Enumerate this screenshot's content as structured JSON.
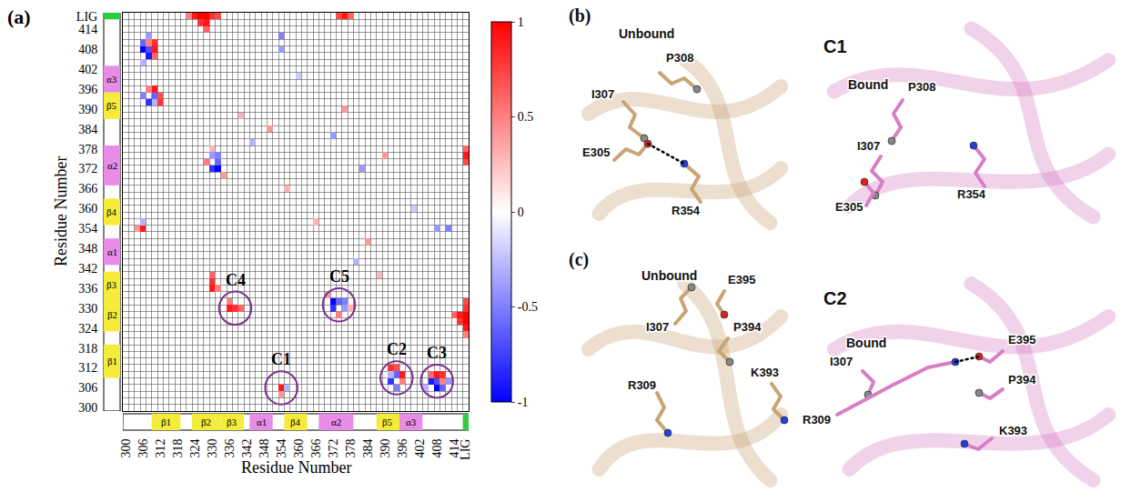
{
  "chart_data": {
    "type": "heatmap",
    "panel_label": "(a)",
    "x_label": "Residue Number",
    "y_label": "Residue Number",
    "categories": [
      "300",
      null,
      null,
      "306",
      null,
      null,
      "312",
      null,
      null,
      "318",
      null,
      null,
      "324",
      null,
      null,
      "330",
      null,
      null,
      "336",
      null,
      null,
      "342",
      null,
      null,
      "348",
      null,
      null,
      "354",
      null,
      null,
      "360",
      null,
      null,
      "366",
      null,
      null,
      "372",
      null,
      null,
      "378",
      null,
      null,
      "384",
      null,
      null,
      "390",
      null,
      null,
      "396",
      null,
      null,
      "402",
      null,
      null,
      "408",
      null,
      null,
      "414",
      null,
      "LIG"
    ],
    "grid": true,
    "colors": [
      "#0000ff",
      "#ffffff",
      "#ff0000"
    ],
    "colorbar_range": [
      -1,
      1
    ],
    "colorbar_ticks": [
      -1,
      -0.5,
      0,
      0.5,
      1
    ],
    "cells": [
      [
        27,
        3,
        0.9
      ],
      [
        27,
        2,
        0.4
      ],
      [
        28,
        3,
        -0.3
      ],
      [
        46,
        6,
        0.8
      ],
      [
        47,
        6,
        0.7
      ],
      [
        47,
        5,
        -0.6
      ],
      [
        46,
        4,
        -0.8
      ],
      [
        48,
        4,
        0.5
      ],
      [
        47,
        3,
        -0.5
      ],
      [
        48,
        5,
        0.9
      ],
      [
        46,
        5,
        -0.3
      ],
      [
        53,
        4,
        -0.9
      ],
      [
        54,
        4,
        -0.7
      ],
      [
        54,
        3,
        -1
      ],
      [
        55,
        3,
        -0.6
      ],
      [
        54,
        5,
        0.9
      ],
      [
        55,
        5,
        0.8
      ],
      [
        53,
        5,
        0.6
      ],
      [
        56,
        4,
        -0.4
      ],
      [
        52,
        3,
        -0.3
      ],
      [
        55,
        4,
        0.5
      ],
      [
        18,
        15,
        0.9
      ],
      [
        19,
        15,
        0.8
      ],
      [
        20,
        15,
        0.6
      ],
      [
        18,
        16,
        0.5
      ],
      [
        36,
        16,
        -1
      ],
      [
        36,
        15,
        -0.8
      ],
      [
        37,
        16,
        -0.6
      ],
      [
        38,
        15,
        -0.4
      ],
      [
        37,
        14,
        0.5
      ],
      [
        38,
        16,
        -0.5
      ],
      [
        39,
        15,
        0.3
      ],
      [
        35,
        17,
        0.4
      ],
      [
        59,
        11,
        0.5
      ],
      [
        59,
        12,
        0.9
      ],
      [
        59,
        13,
        1
      ],
      [
        59,
        14,
        1
      ],
      [
        59,
        15,
        0.8
      ],
      [
        59,
        16,
        0.7
      ],
      [
        58,
        13,
        0.8
      ],
      [
        58,
        14,
        0.9
      ],
      [
        57,
        14,
        0.6
      ],
      [
        59,
        37,
        0.7
      ],
      [
        59,
        38,
        0.9
      ],
      [
        59,
        39,
        0.6
      ],
      [
        44,
        20,
        0.3
      ],
      [
        40,
        22,
        -0.3
      ],
      [
        42,
        25,
        0.4
      ],
      [
        50,
        30,
        -0.2
      ],
      [
        33,
        28,
        0.3
      ],
      [
        45,
        38,
        0.4
      ],
      [
        41,
        36,
        -0.4
      ],
      [
        56,
        27,
        -0.5
      ],
      [
        54,
        27,
        -0.4
      ],
      [
        3,
        27,
        0.9
      ],
      [
        2,
        27,
        0.4
      ],
      [
        3,
        28,
        -0.3
      ],
      [
        6,
        46,
        0.8
      ],
      [
        6,
        47,
        0.7
      ],
      [
        5,
        47,
        -0.6
      ],
      [
        4,
        46,
        -0.8
      ],
      [
        4,
        48,
        0.5
      ],
      [
        3,
        47,
        -0.5
      ],
      [
        5,
        48,
        0.9
      ],
      [
        5,
        46,
        -0.3
      ],
      [
        4,
        53,
        -0.9
      ],
      [
        4,
        54,
        -0.7
      ],
      [
        3,
        54,
        -1
      ],
      [
        3,
        55,
        -0.6
      ],
      [
        5,
        54,
        0.9
      ],
      [
        5,
        55,
        0.8
      ],
      [
        5,
        53,
        0.6
      ],
      [
        4,
        56,
        -0.4
      ],
      [
        3,
        52,
        -0.3
      ],
      [
        4,
        55,
        0.5
      ],
      [
        15,
        18,
        0.9
      ],
      [
        15,
        19,
        0.8
      ],
      [
        15,
        20,
        0.6
      ],
      [
        16,
        18,
        0.5
      ],
      [
        16,
        36,
        -1
      ],
      [
        15,
        36,
        -0.8
      ],
      [
        16,
        37,
        -0.6
      ],
      [
        15,
        38,
        -0.4
      ],
      [
        14,
        37,
        0.5
      ],
      [
        16,
        38,
        -0.5
      ],
      [
        15,
        39,
        0.3
      ],
      [
        17,
        35,
        0.4
      ],
      [
        11,
        59,
        0.5
      ],
      [
        12,
        59,
        0.9
      ],
      [
        13,
        59,
        1
      ],
      [
        14,
        59,
        1
      ],
      [
        15,
        59,
        0.8
      ],
      [
        16,
        59,
        0.7
      ],
      [
        13,
        58,
        0.8
      ],
      [
        14,
        58,
        0.9
      ],
      [
        14,
        57,
        0.6
      ],
      [
        37,
        59,
        0.7
      ],
      [
        38,
        59,
        0.9
      ],
      [
        39,
        59,
        0.6
      ],
      [
        20,
        44,
        0.3
      ],
      [
        22,
        40,
        -0.3
      ],
      [
        25,
        42,
        0.4
      ],
      [
        30,
        50,
        -0.2
      ],
      [
        28,
        33,
        0.3
      ],
      [
        38,
        45,
        0.4
      ],
      [
        36,
        41,
        -0.4
      ],
      [
        27,
        56,
        -0.5
      ],
      [
        27,
        54,
        -0.4
      ]
    ],
    "secondary_structure": [
      {
        "label": "β1",
        "start": 5,
        "end": 9,
        "color": "#f5ec3a"
      },
      {
        "label": "β2",
        "start": 12,
        "end": 16,
        "color": "#f5ec3a"
      },
      {
        "label": "β3",
        "start": 17,
        "end": 20,
        "color": "#f5ec3a"
      },
      {
        "label": "α1",
        "start": 22,
        "end": 25,
        "color": "#e88ce8"
      },
      {
        "label": "β4",
        "start": 28,
        "end": 31,
        "color": "#f5ec3a"
      },
      {
        "label": "α2",
        "start": 34,
        "end": 39,
        "color": "#e88ce8"
      },
      {
        "label": "β5",
        "start": 44,
        "end": 47,
        "color": "#f5ec3a"
      },
      {
        "label": "α3",
        "start": 48,
        "end": 51,
        "color": "#e88ce8"
      },
      {
        "start": 59,
        "end": 59,
        "color": "#2ecc40"
      }
    ],
    "annotations": [
      {
        "label": "C1",
        "x": 27,
        "y": 3
      },
      {
        "label": "C2",
        "x": 47,
        "y": 4.5
      },
      {
        "label": "C3",
        "x": 54,
        "y": 4
      },
      {
        "label": "C4",
        "x": 19,
        "y": 15
      },
      {
        "label": "C5",
        "x": 37,
        "y": 15.5
      }
    ]
  },
  "structure_panels": [
    {
      "label": "(b)",
      "views": [
        {
          "state": "Unbound",
          "residues": [
            "P308",
            "I307",
            "E305",
            "R354"
          ],
          "hbonds": [
            [
              "E305",
              "R354"
            ]
          ]
        },
        {
          "cluster": "C1",
          "state": "Bound",
          "residues": [
            "P308",
            "I307",
            "E305",
            "R354"
          ],
          "hbonds": []
        }
      ]
    },
    {
      "label": "(c)",
      "views": [
        {
          "state": "Unbound",
          "residues": [
            "E395",
            "I307",
            "P394",
            "K393",
            "R309"
          ],
          "hbonds": []
        },
        {
          "cluster": "C2",
          "state": "Bound",
          "residues": [
            "I307",
            "E395",
            "P394",
            "R309",
            "K393"
          ],
          "hbonds": [
            [
              "R309",
              "E395"
            ]
          ]
        }
      ]
    }
  ]
}
